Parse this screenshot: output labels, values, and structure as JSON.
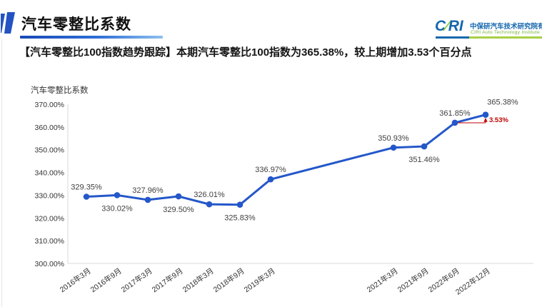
{
  "header": {
    "title": "汽车零整比系数",
    "subtitle": "【汽车零整比100指数趋势跟踪】本期汽车零整比100指数为365.38%，较上期增加3.53个百分点"
  },
  "logo": {
    "wordmark_c": "C",
    "wordmark_slash": "∕",
    "wordmark_ri": "RI",
    "company_cn": "中保研汽车技术研究院有限公司",
    "company_en": "CIRI Auto Technology Institute",
    "blue": "#1467ae",
    "green": "#8dc63f"
  },
  "chart_data": {
    "type": "line",
    "title": "",
    "ylabel": "汽车零整比系数",
    "xlabel": "",
    "grid": false,
    "legend": false,
    "ylim": [
      300,
      370
    ],
    "y_ticks": [
      "370.00%",
      "360.00%",
      "350.00%",
      "340.00%",
      "330.00%",
      "320.00%",
      "310.00%",
      "300.00%"
    ],
    "y_tick_values": [
      370,
      360,
      350,
      340,
      330,
      320,
      310,
      300
    ],
    "categories": [
      "2016年3月",
      "2016年9月",
      "2017年3月",
      "2017年9月",
      "2018年3月",
      "2018年9月",
      "2019年3月",
      "2021年3月",
      "2021年9月",
      "2022年6月",
      "2022年12月"
    ],
    "values": [
      329.35,
      330.02,
      327.96,
      329.5,
      326.01,
      325.83,
      336.97,
      350.93,
      351.46,
      361.85,
      365.38
    ],
    "point_labels": [
      "329.35%",
      "330.02%",
      "327.96%",
      "329.50%",
      "326.01%",
      "325.83%",
      "336.97%",
      "350.93%",
      "351.46%",
      "361.85%",
      "365.38%"
    ],
    "label_side": [
      "above",
      "below",
      "above",
      "below",
      "above",
      "below",
      "above",
      "above",
      "below",
      "above",
      "above"
    ],
    "x_slots": [
      0,
      1,
      2,
      3,
      4,
      5,
      6,
      10,
      11,
      12,
      13
    ],
    "series_color": "#2457c9",
    "axis_color": "#d9d9d9",
    "tick_label_color": "#333333",
    "data_label_color": "#404040",
    "annotation": {
      "text": "3.53%",
      "color": "#c00000"
    }
  }
}
